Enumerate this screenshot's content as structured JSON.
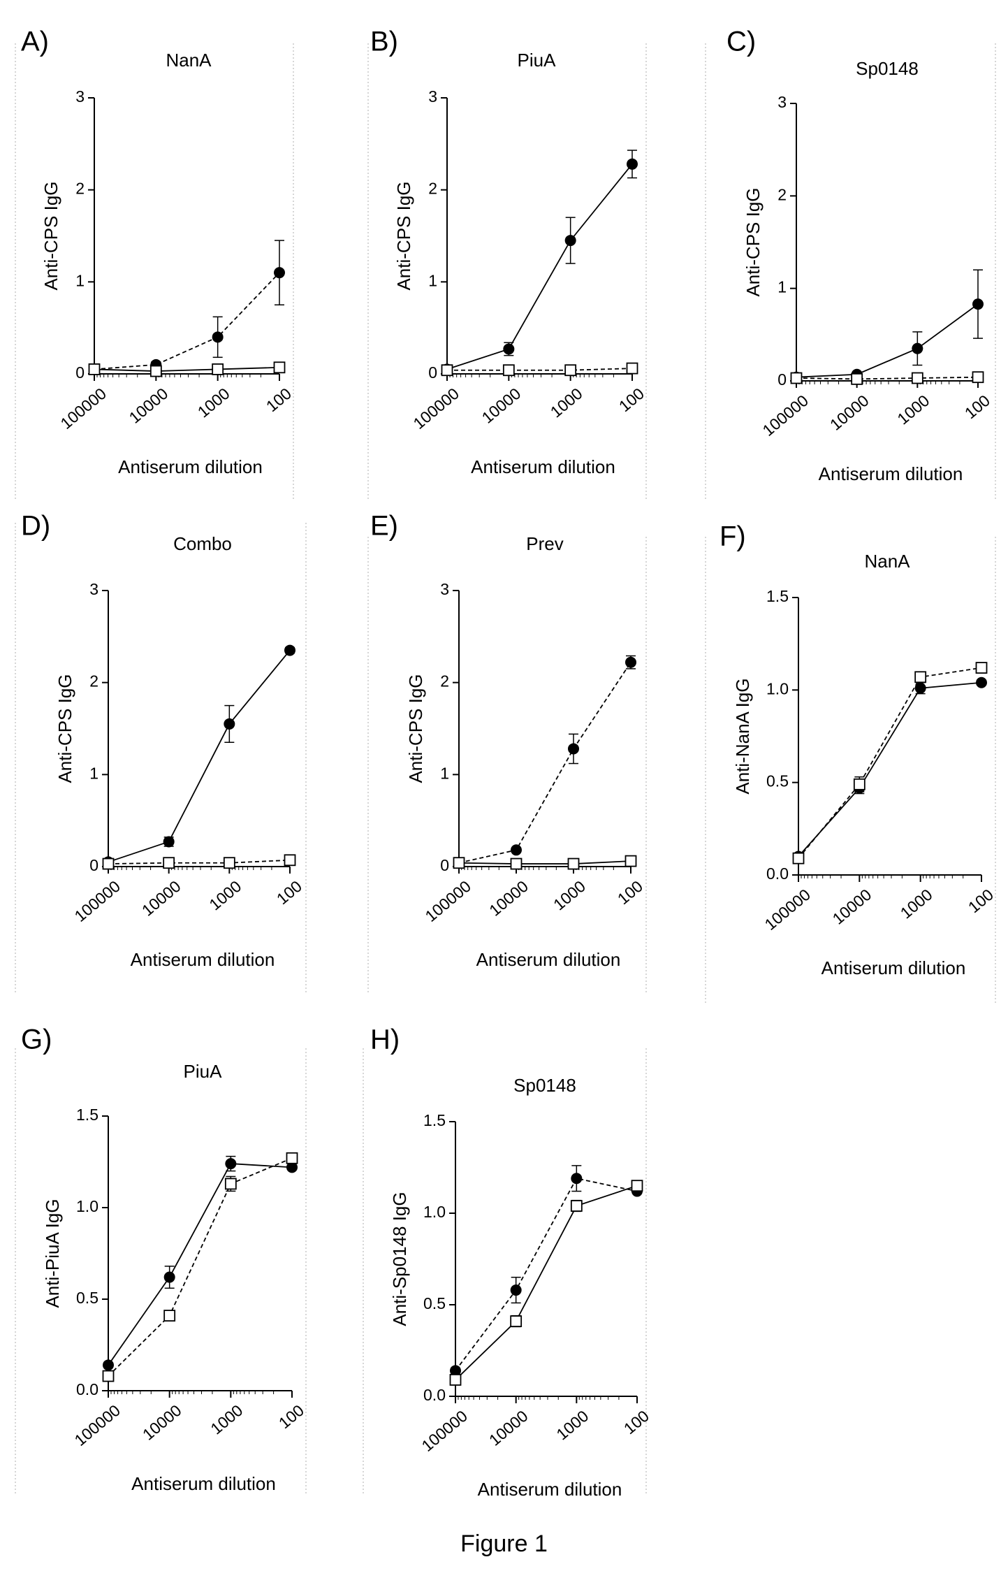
{
  "figure_caption": "Figure 1",
  "chart_data": [
    {
      "panel": "A)",
      "title": "NanA",
      "type": "line",
      "xlabel": "Antiserum dilution",
      "ylabel": "Anti-CPS IgG",
      "x": [
        100000,
        10000,
        1000,
        100
      ],
      "xscale": "log",
      "x_reversed": true,
      "xticks": [
        "100000",
        "10000",
        "1000",
        "100"
      ],
      "ylim": [
        0,
        3
      ],
      "yticks": [
        "0",
        "1",
        "2",
        "3"
      ],
      "series": [
        {
          "marker": "filled-circle",
          "line": "dashed",
          "values": [
            0.05,
            0.1,
            0.4,
            1.1
          ],
          "errors": [
            0.02,
            0.03,
            0.22,
            0.35
          ]
        },
        {
          "marker": "open-square",
          "line": "solid",
          "values": [
            0.05,
            0.03,
            0.05,
            0.07
          ],
          "errors": [
            0.02,
            0.01,
            0.02,
            0.02
          ]
        }
      ]
    },
    {
      "panel": "B)",
      "title": "PiuA",
      "type": "line",
      "xlabel": "Antiserum dilution",
      "ylabel": "Anti-CPS IgG",
      "x": [
        100000,
        10000,
        1000,
        100
      ],
      "xscale": "log",
      "x_reversed": true,
      "xticks": [
        "100000",
        "10000",
        "1000",
        "100"
      ],
      "ylim": [
        0,
        3
      ],
      "yticks": [
        "0",
        "1",
        "2",
        "3"
      ],
      "series": [
        {
          "marker": "filled-circle",
          "line": "solid",
          "values": [
            0.05,
            0.27,
            1.45,
            2.28
          ],
          "errors": [
            0.02,
            0.07,
            0.25,
            0.15
          ]
        },
        {
          "marker": "open-square",
          "line": "dashed",
          "values": [
            0.04,
            0.04,
            0.04,
            0.06
          ],
          "errors": [
            0.01,
            0.01,
            0.01,
            0.02
          ]
        }
      ]
    },
    {
      "panel": "C)",
      "title": "Sp0148",
      "type": "line",
      "xlabel": "Antiserum dilution",
      "ylabel": "Anti-CPS IgG",
      "x": [
        100000,
        10000,
        1000,
        100
      ],
      "xscale": "log",
      "x_reversed": true,
      "xticks": [
        "100000",
        "10000",
        "1000",
        "100"
      ],
      "ylim": [
        0,
        3
      ],
      "yticks": [
        "0",
        "1",
        "2",
        "3"
      ],
      "series": [
        {
          "marker": "filled-circle",
          "line": "solid",
          "values": [
            0.04,
            0.07,
            0.35,
            0.83
          ],
          "errors": [
            0.02,
            0.02,
            0.18,
            0.37
          ]
        },
        {
          "marker": "open-square",
          "line": "dashed",
          "values": [
            0.03,
            0.02,
            0.03,
            0.04
          ],
          "errors": [
            0.01,
            0.01,
            0.01,
            0.01
          ]
        }
      ]
    },
    {
      "panel": "D)",
      "title": "Combo",
      "type": "line",
      "xlabel": "Antiserum dilution",
      "ylabel": "Anti-CPS IgG",
      "x": [
        100000,
        10000,
        1000,
        100
      ],
      "xscale": "log",
      "x_reversed": true,
      "xticks": [
        "100000",
        "10000",
        "1000",
        "100"
      ],
      "ylim": [
        0,
        3
      ],
      "yticks": [
        "0",
        "1",
        "2",
        "3"
      ],
      "series": [
        {
          "marker": "filled-circle",
          "line": "solid",
          "values": [
            0.05,
            0.27,
            1.55,
            2.35
          ],
          "errors": [
            0.02,
            0.05,
            0.2,
            0.03
          ]
        },
        {
          "marker": "open-square",
          "line": "dashed",
          "values": [
            0.03,
            0.04,
            0.04,
            0.07
          ],
          "errors": [
            0.01,
            0.01,
            0.01,
            0.02
          ]
        }
      ]
    },
    {
      "panel": "E)",
      "title": "Prev",
      "type": "line",
      "xlabel": "Antiserum dilution",
      "ylabel": "Anti-CPS IgG",
      "x": [
        100000,
        10000,
        1000,
        100
      ],
      "xscale": "log",
      "x_reversed": true,
      "xticks": [
        "100000",
        "10000",
        "1000",
        "100"
      ],
      "ylim": [
        0,
        3
      ],
      "yticks": [
        "0",
        "1",
        "2",
        "3"
      ],
      "series": [
        {
          "marker": "filled-circle",
          "line": "dashed",
          "values": [
            0.04,
            0.18,
            1.28,
            2.22
          ],
          "errors": [
            0.02,
            0.02,
            0.16,
            0.07
          ]
        },
        {
          "marker": "open-square",
          "line": "solid",
          "values": [
            0.04,
            0.03,
            0.03,
            0.06
          ],
          "errors": [
            0.01,
            0.01,
            0.01,
            0.02
          ]
        }
      ]
    },
    {
      "panel": "F)",
      "title": "NanA",
      "type": "line",
      "xlabel": "Antiserum dilution",
      "ylabel": "Anti-NanA IgG",
      "x": [
        100000,
        10000,
        1000,
        100
      ],
      "xscale": "log",
      "x_reversed": true,
      "xticks": [
        "100000",
        "10000",
        "1000",
        "100"
      ],
      "ylim": [
        0,
        1.5
      ],
      "yticks": [
        "0.0",
        "0.5",
        "1.0",
        "1.5"
      ],
      "series": [
        {
          "marker": "filled-circle",
          "line": "solid",
          "values": [
            0.1,
            0.47,
            1.01,
            1.04
          ],
          "errors": [
            0.01,
            0.03,
            0.03,
            0.01
          ]
        },
        {
          "marker": "open-square",
          "line": "dashed",
          "values": [
            0.09,
            0.49,
            1.07,
            1.12
          ],
          "errors": [
            0.01,
            0.04,
            0.02,
            0.01
          ]
        }
      ]
    },
    {
      "panel": "G)",
      "title": "PiuA",
      "type": "line",
      "xlabel": "Antiserum dilution",
      "ylabel": "Anti-PiuA IgG",
      "x": [
        100000,
        10000,
        1000,
        100
      ],
      "xscale": "log",
      "x_reversed": true,
      "xticks": [
        "100000",
        "10000",
        "1000",
        "100"
      ],
      "ylim": [
        0,
        1.5
      ],
      "yticks": [
        "0.0",
        "0.5",
        "1.0",
        "1.5"
      ],
      "series": [
        {
          "marker": "filled-circle",
          "line": "solid",
          "values": [
            0.14,
            0.62,
            1.24,
            1.22
          ],
          "errors": [
            0.01,
            0.06,
            0.04,
            0.01
          ]
        },
        {
          "marker": "open-square",
          "line": "dashed",
          "values": [
            0.08,
            0.41,
            1.13,
            1.27
          ],
          "errors": [
            0.01,
            0.02,
            0.04,
            0.02
          ]
        }
      ]
    },
    {
      "panel": "H)",
      "title": "Sp0148",
      "type": "line",
      "xlabel": "Antiserum dilution",
      "ylabel": "Anti-Sp0148 IgG",
      "x": [
        100000,
        10000,
        1000,
        100
      ],
      "xscale": "log",
      "x_reversed": true,
      "xticks": [
        "100000",
        "10000",
        "1000",
        "100"
      ],
      "ylim": [
        0,
        1.5
      ],
      "yticks": [
        "0.0",
        "0.5",
        "1.0",
        "1.5"
      ],
      "series": [
        {
          "marker": "filled-circle",
          "line": "dashed",
          "values": [
            0.14,
            0.58,
            1.19,
            1.12
          ],
          "errors": [
            0.01,
            0.07,
            0.07,
            0.01
          ]
        },
        {
          "marker": "open-square",
          "line": "solid",
          "values": [
            0.09,
            0.41,
            1.04,
            1.15
          ],
          "errors": [
            0.01,
            0.03,
            0.03,
            0.01
          ]
        }
      ]
    }
  ]
}
